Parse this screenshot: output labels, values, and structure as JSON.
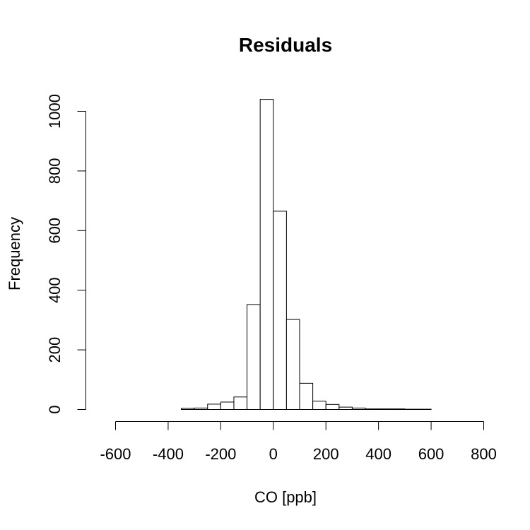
{
  "chart_data": {
    "type": "bar",
    "title": "Residuals",
    "xlabel": "CO [ppb]",
    "ylabel": "Frequency",
    "xlim": [
      -600,
      800
    ],
    "ylim": [
      0,
      1000
    ],
    "x_ticks": [
      -600,
      -400,
      -200,
      0,
      200,
      400,
      600,
      800
    ],
    "y_ticks": [
      0,
      200,
      400,
      600,
      800,
      1000
    ],
    "bin_width": 50,
    "bins": [
      {
        "start": -650,
        "end": -600,
        "count": 0
      },
      {
        "start": -600,
        "end": -550,
        "count": 0
      },
      {
        "start": -550,
        "end": -500,
        "count": 0
      },
      {
        "start": -500,
        "end": -450,
        "count": 0
      },
      {
        "start": -450,
        "end": -400,
        "count": 0
      },
      {
        "start": -400,
        "end": -350,
        "count": 0
      },
      {
        "start": -350,
        "end": -300,
        "count": 4
      },
      {
        "start": -300,
        "end": -250,
        "count": 5
      },
      {
        "start": -250,
        "end": -200,
        "count": 18
      },
      {
        "start": -200,
        "end": -150,
        "count": 25
      },
      {
        "start": -150,
        "end": -100,
        "count": 42
      },
      {
        "start": -100,
        "end": -50,
        "count": 352
      },
      {
        "start": -50,
        "end": 0,
        "count": 1040
      },
      {
        "start": 0,
        "end": 50,
        "count": 665
      },
      {
        "start": 50,
        "end": 100,
        "count": 302
      },
      {
        "start": 100,
        "end": 150,
        "count": 88
      },
      {
        "start": 150,
        "end": 200,
        "count": 28
      },
      {
        "start": 200,
        "end": 250,
        "count": 17
      },
      {
        "start": 250,
        "end": 300,
        "count": 8
      },
      {
        "start": 300,
        "end": 350,
        "count": 5
      },
      {
        "start": 350,
        "end": 400,
        "count": 2
      },
      {
        "start": 400,
        "end": 450,
        "count": 2
      },
      {
        "start": 450,
        "end": 500,
        "count": 2
      },
      {
        "start": 500,
        "end": 550,
        "count": 1
      },
      {
        "start": 550,
        "end": 600,
        "count": 1
      },
      {
        "start": 600,
        "end": 650,
        "count": 0
      },
      {
        "start": 650,
        "end": 700,
        "count": 0
      },
      {
        "start": 700,
        "end": 750,
        "count": 0
      }
    ]
  }
}
